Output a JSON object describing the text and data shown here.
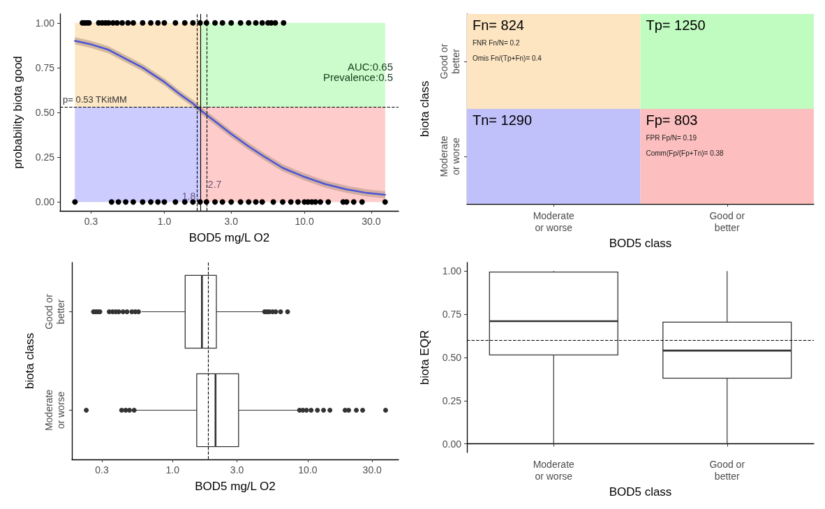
{
  "chart_data": [
    {
      "type": "line",
      "xlabel": "BOD5 mg/L O2",
      "ylabel": "probability biota good",
      "log": "x",
      "xlim": [
        0.18,
        47
      ],
      "xticks": [
        {
          "value": 0.3,
          "label": "0.3"
        },
        {
          "value": 1,
          "label": "1.0"
        },
        {
          "value": 3,
          "label": "3.0"
        },
        {
          "value": 10,
          "label": "10.0"
        },
        {
          "value": 30,
          "label": "30.0"
        }
      ],
      "ylim": [
        -0.05,
        1.05
      ],
      "yticks": [
        {
          "value": 0,
          "label": "0.00"
        },
        {
          "value": 0.25,
          "label": "0.25"
        },
        {
          "value": 0.5,
          "label": "0.50"
        },
        {
          "value": 0.75,
          "label": "0.75"
        },
        {
          "value": 1,
          "label": "1.00"
        }
      ],
      "series": [
        {
          "type": "area",
          "color": "#fde6c4",
          "x": [
            0.23,
            1.81
          ],
          "values": [
            1,
            1
          ]
        },
        {
          "type": "area",
          "color": "#ccccff",
          "x": [
            0.23,
            1.81
          ],
          "values": [
            0.53,
            0.53
          ]
        },
        {
          "type": "area",
          "color": "#ccfccc",
          "x": [
            1.81,
            37.7
          ],
          "values": [
            1,
            1
          ]
        },
        {
          "type": "area",
          "color": "#ffcccc",
          "x": [
            1.81,
            37.7
          ],
          "values": [
            0.53,
            0.53
          ]
        },
        {
          "type": "line",
          "color": "#4b55d6",
          "x": [
            0.23,
            0.3,
            0.4,
            0.5,
            0.7,
            1.0,
            1.3,
            1.6,
            1.9,
            2.3,
            3,
            4,
            5,
            7,
            10,
            14,
            20,
            28,
            37.7
          ],
          "values": [
            0.9,
            0.88,
            0.85,
            0.81,
            0.75,
            0.67,
            0.6,
            0.55,
            0.5,
            0.45,
            0.38,
            0.31,
            0.26,
            0.19,
            0.14,
            0.1,
            0.07,
            0.05,
            0.04
          ],
          "lower": [
            0.88,
            0.86,
            0.83,
            0.79,
            0.73,
            0.65,
            0.58,
            0.53,
            0.48,
            0.43,
            0.36,
            0.29,
            0.24,
            0.17,
            0.12,
            0.08,
            0.05,
            0.03,
            0.02
          ],
          "upper": [
            0.92,
            0.9,
            0.87,
            0.83,
            0.77,
            0.69,
            0.62,
            0.57,
            0.52,
            0.47,
            0.4,
            0.33,
            0.28,
            0.21,
            0.16,
            0.12,
            0.09,
            0.07,
            0.06
          ]
        },
        {
          "type": "scatter",
          "color": "#000000",
          "marker": "circle",
          "x": [
            0.26,
            0.27,
            0.28,
            0.29,
            0.34,
            0.36,
            0.38,
            0.4,
            0.43,
            0.46,
            0.5,
            0.55,
            0.6,
            0.7,
            0.8,
            0.9,
            1.0,
            1.2,
            1.4,
            1.6,
            1.8,
            2.0,
            2.3,
            2.6,
            3.0,
            3.5,
            4.0,
            4.5,
            5.0,
            5.5,
            5.8,
            6.2,
            7.1
          ],
          "values": [
            1,
            1,
            1,
            1,
            1,
            1,
            1,
            1,
            1,
            1,
            1,
            1,
            1,
            1,
            1,
            1,
            1,
            1,
            1,
            1,
            1,
            1,
            1,
            1,
            1,
            1,
            1,
            1,
            1,
            1,
            1,
            1,
            1
          ]
        },
        {
          "type": "scatter",
          "color": "#000000",
          "marker": "circle",
          "x": [
            0.23,
            0.42,
            0.47,
            0.53,
            0.6,
            0.7,
            0.8,
            0.9,
            1.0,
            1.2,
            1.4,
            1.6,
            1.8,
            2.0,
            2.3,
            2.6,
            3.0,
            3.5,
            4.0,
            4.5,
            5,
            6,
            7,
            8,
            9,
            10,
            10.6,
            11.3,
            12,
            13,
            14.8,
            18.9,
            20,
            22.5,
            25.8,
            37.7
          ],
          "values": [
            0,
            0,
            0,
            0,
            0,
            0,
            0,
            0,
            0,
            0,
            0,
            0,
            0,
            0,
            0,
            0,
            0,
            0,
            0,
            0,
            0,
            0,
            0,
            0,
            0,
            0,
            0,
            0,
            0,
            0,
            0,
            0,
            0,
            0,
            0,
            0
          ]
        }
      ],
      "ref_lines": [
        {
          "axis": "y",
          "value": 0.53,
          "label": "p= 0.53 TKitMM",
          "line_style": "dashed"
        },
        {
          "axis": "x",
          "value": 1.71,
          "line_style": "dashed"
        },
        {
          "axis": "x",
          "value": 2.0,
          "line_style": "dashed"
        },
        {
          "axis": "x",
          "value": 1.81,
          "line_style": "solid"
        }
      ],
      "annotations": [
        "AUC:0.65",
        "Prevalence:0.5",
        {
          "text": "1.8",
          "x": 1.71,
          "y": 0.03
        },
        {
          "text": "2.7",
          "x": 2.0,
          "y": 0.1
        }
      ]
    },
    {
      "type": "other",
      "xlabel": "BOD5 class",
      "ylabel": "biota class",
      "categories": [
        "Moderate\nor worse",
        "Good or\nbetter"
      ],
      "y_categories": [
        "Good or\nbetter",
        "Moderate\nor worse"
      ],
      "cell_labels": [
        [
          "Fn= 824\nFNR Fn/N= 0.2\nOmis Fn/(Tp+Fn)= 0.4",
          "Tp= 1250"
        ],
        [
          "Tn= 1290",
          "Fp= 803\nFPR Fp/N= 0.19\nComm(Fp/(Fp+Tn)= 0.38"
        ]
      ],
      "colors": [
        "#fde5c2",
        "#c0fbc0",
        "#c0c0fb",
        "#fcbebe"
      ]
    },
    {
      "type": "box",
      "orientation": "horizontal",
      "xlabel": "BOD5 mg/L O2",
      "ylabel": "biota class",
      "log": "x",
      "xlim": [
        0.18,
        47
      ],
      "xticks": [
        {
          "value": 0.3,
          "label": "0.3"
        },
        {
          "value": 1,
          "label": "1.0"
        },
        {
          "value": 3,
          "label": "3.0"
        },
        {
          "value": 10,
          "label": "10.0"
        },
        {
          "value": 30,
          "label": "30.0"
        }
      ],
      "categories": [
        "Good or\nbetter",
        "Moderate\nor worse"
      ],
      "boxes": [
        {
          "low": 0.59,
          "q1": 1.24,
          "median": 1.65,
          "q3": 2.11,
          "high": 4.67,
          "outliers": [
            0.26,
            0.27,
            0.28,
            0.29,
            0.34,
            0.36,
            0.38,
            0.4,
            0.43,
            0.46,
            0.5,
            0.53,
            0.56,
            4.8,
            5.0,
            5.2,
            5.5,
            5.8,
            6.3,
            7.1
          ]
        },
        {
          "low": 0.53,
          "q1": 1.51,
          "median": 2.08,
          "q3": 3.08,
          "high": 8.5,
          "outliers": [
            0.23,
            0.42,
            0.45,
            0.48,
            0.52,
            8.7,
            9.2,
            9.8,
            10.6,
            11.8,
            13.1,
            14.6,
            18.9,
            20.1,
            22.9,
            25.5,
            37.7
          ]
        }
      ],
      "ref_lines": [
        {
          "axis": "x",
          "value": 1.84,
          "line_style": "dashed"
        }
      ]
    },
    {
      "type": "box",
      "xlabel": "BOD5 class",
      "ylabel": "biota EQR",
      "categories": [
        "Moderate\nor worse",
        "Good or\nbetter"
      ],
      "ylim": [
        -0.05,
        1.05
      ],
      "yticks": [
        {
          "value": 0,
          "label": "0.00"
        },
        {
          "value": 0.25,
          "label": "0.25"
        },
        {
          "value": 0.5,
          "label": "0.50"
        },
        {
          "value": 0.75,
          "label": "0.75"
        },
        {
          "value": 1,
          "label": "1.00"
        }
      ],
      "boxes": [
        {
          "low": 0.0,
          "q1": 0.515,
          "median": 0.71,
          "q3": 0.995,
          "high": 1.0
        },
        {
          "low": 0.0,
          "q1": 0.38,
          "median": 0.54,
          "q3": 0.705,
          "high": 1.0
        }
      ],
      "ref_lines": [
        {
          "axis": "y",
          "value": 0.6,
          "line_style": "dashed"
        }
      ]
    }
  ]
}
